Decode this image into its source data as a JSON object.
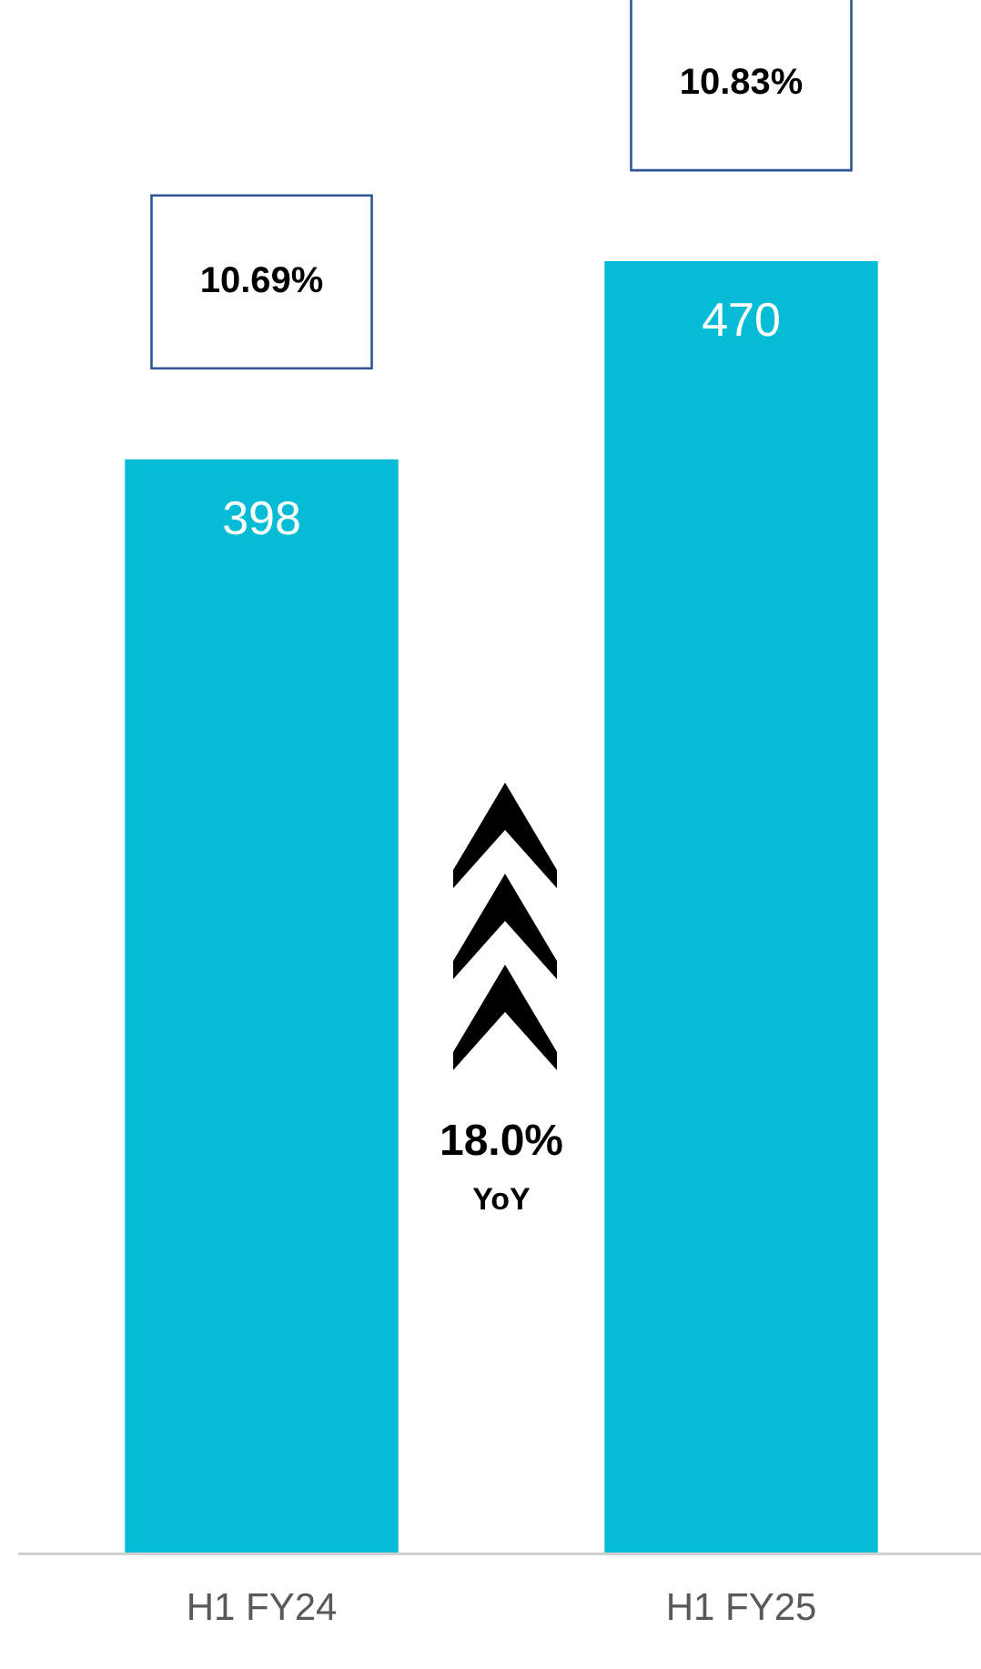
{
  "chart_data": {
    "type": "bar",
    "categories": [
      "H1 FY24",
      "H1 FY25"
    ],
    "values": [
      398,
      470
    ],
    "color": "#05bcd6",
    "ylim": [
      0,
      565
    ],
    "tick_labels": "x",
    "grid": false,
    "legend": false,
    "data_labels": true,
    "annotations": [
      "10.69%",
      "10.83%",
      "18.0%",
      "YoY"
    ]
  }
}
